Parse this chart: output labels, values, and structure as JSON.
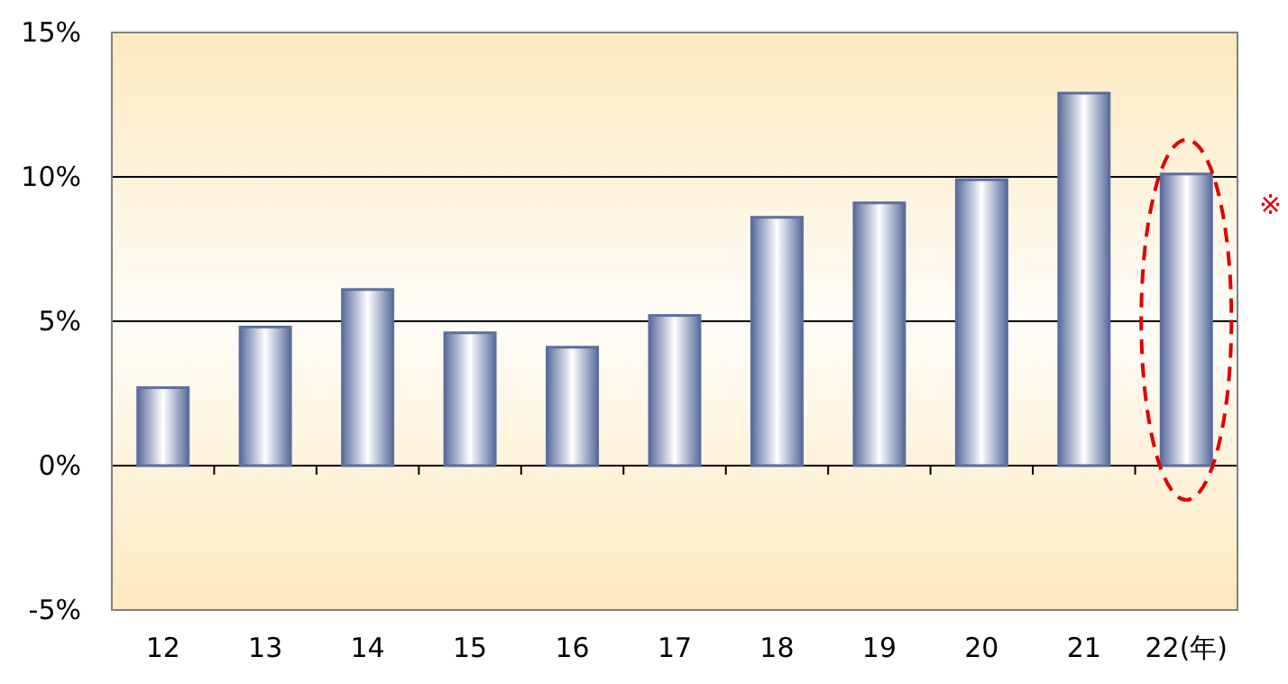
{
  "chart_data": {
    "type": "bar",
    "categories": [
      "12",
      "13",
      "14",
      "15",
      "16",
      "17",
      "18",
      "19",
      "20",
      "21",
      "22(年)"
    ],
    "values": [
      2.7,
      4.8,
      6.1,
      4.6,
      4.1,
      5.2,
      8.6,
      9.1,
      9.9,
      12.9,
      10.1
    ],
    "color": "#5b6e9e",
    "ylim": [
      -5,
      15
    ],
    "yticks": [
      {
        "value": -5,
        "label": "-5%"
      },
      {
        "value": 0,
        "label": "0%"
      },
      {
        "value": 5,
        "label": "5%"
      },
      {
        "value": 10,
        "label": "10%"
      },
      {
        "value": 15,
        "label": "15%"
      }
    ],
    "grid": "y",
    "annotations": [
      {
        "text": "※",
        "x": "22(年)",
        "y": 10.1
      }
    ]
  }
}
